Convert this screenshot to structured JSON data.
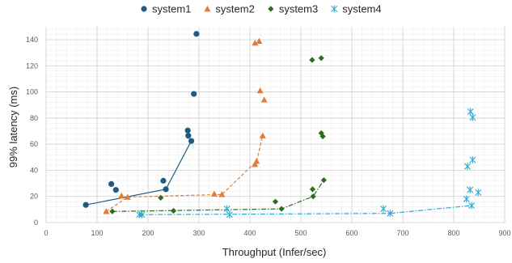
{
  "chart_data": {
    "type": "scatter",
    "title": "",
    "xlabel": "Throughput (Infer/sec)",
    "ylabel": "99% latency (ms)",
    "xlim": [
      0,
      900
    ],
    "ylim": [
      0,
      150
    ],
    "xticks": [
      0,
      100,
      200,
      300,
      400,
      500,
      600,
      700,
      800,
      900
    ],
    "yticks": [
      0,
      20,
      40,
      60,
      80,
      100,
      120,
      140
    ],
    "grid": true,
    "legend_position": "top",
    "series": [
      {
        "name": "system1",
        "color": "#1f5c82",
        "marker": "circle",
        "points": [
          [
            78,
            13.5
          ],
          [
            128,
            29.5
          ],
          [
            137,
            25
          ],
          [
            230,
            32
          ],
          [
            235,
            25.5
          ],
          [
            278,
            70.5
          ],
          [
            279,
            66.5
          ],
          [
            285,
            62.5
          ],
          [
            290,
            98.5
          ],
          [
            295,
            144.5
          ]
        ],
        "line": [
          [
            78,
            13.5
          ],
          [
            235,
            25.5
          ],
          [
            285,
            62.5
          ]
        ],
        "line_style": "solid"
      },
      {
        "name": "system2",
        "color": "#e07b39",
        "marker": "triangle",
        "points": [
          [
            118,
            8.5
          ],
          [
            148,
            20.5
          ],
          [
            160,
            19.5
          ],
          [
            330,
            22
          ],
          [
            345,
            21.5
          ],
          [
            410,
            44.5
          ],
          [
            413,
            47
          ],
          [
            420,
            101
          ],
          [
            425,
            66.5
          ],
          [
            428,
            94
          ],
          [
            410,
            137.5
          ],
          [
            418,
            139
          ]
        ],
        "line": [
          [
            118,
            8.5
          ],
          [
            160,
            19.5
          ],
          [
            345,
            21.5
          ],
          [
            413,
            47
          ],
          [
            425,
            66.5
          ]
        ],
        "line_style": "dashed"
      },
      {
        "name": "system3",
        "color": "#2e6b1f",
        "marker": "diamond",
        "points": [
          [
            130,
            8.5
          ],
          [
            225,
            19
          ],
          [
            250,
            9
          ],
          [
            450,
            16
          ],
          [
            462,
            10.5
          ],
          [
            523,
            25.5
          ],
          [
            524,
            20
          ],
          [
            540,
            68.5
          ],
          [
            543,
            66
          ],
          [
            545,
            32.5
          ],
          [
            522,
            124.5
          ],
          [
            540,
            126
          ]
        ],
        "line": [
          [
            130,
            8.5
          ],
          [
            462,
            10.5
          ],
          [
            524,
            20
          ],
          [
            545,
            32.5
          ]
        ],
        "line_style": "dash-dot"
      },
      {
        "name": "system4",
        "color": "#2aa7d5",
        "marker": "asterisk",
        "points": [
          [
            183,
            6
          ],
          [
            188,
            6
          ],
          [
            355,
            10.5
          ],
          [
            360,
            6
          ],
          [
            662,
            10.5
          ],
          [
            675,
            7
          ],
          [
            825,
            18
          ],
          [
            827,
            43
          ],
          [
            832,
            25
          ],
          [
            835,
            13
          ],
          [
            833,
            85
          ],
          [
            837,
            80.5
          ],
          [
            837,
            48
          ],
          [
            848,
            23
          ]
        ],
        "line": [
          [
            183,
            6
          ],
          [
            675,
            7
          ],
          [
            835,
            13
          ]
        ],
        "line_style": "dash-dot"
      }
    ]
  }
}
